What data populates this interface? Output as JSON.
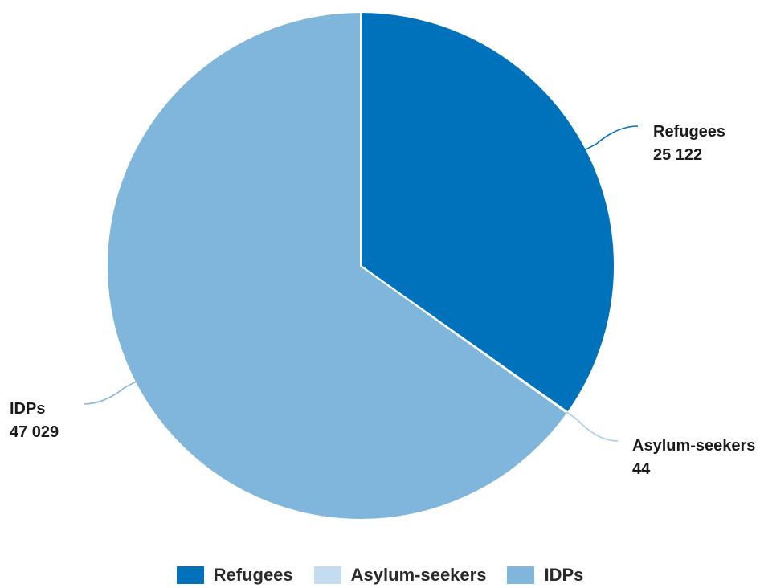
{
  "chart_data": {
    "type": "pie",
    "title": "",
    "categories": [
      "Refugees",
      "Asylum-seekers",
      "IDPs"
    ],
    "values": [
      25122,
      44,
      47029
    ],
    "value_labels": [
      "25 122",
      "44",
      "47 029"
    ],
    "colors": [
      "#0072bc",
      "#c3dcef",
      "#80b6db"
    ],
    "start_angle": "12 o'clock, clockwise",
    "legend_position": "bottom-center"
  },
  "legend": {
    "items": [
      {
        "label": "Refugees",
        "color": "#0072bc"
      },
      {
        "label": "Asylum-seekers",
        "color": "#c3dcef"
      },
      {
        "label": "IDPs",
        "color": "#80b6db"
      }
    ]
  }
}
